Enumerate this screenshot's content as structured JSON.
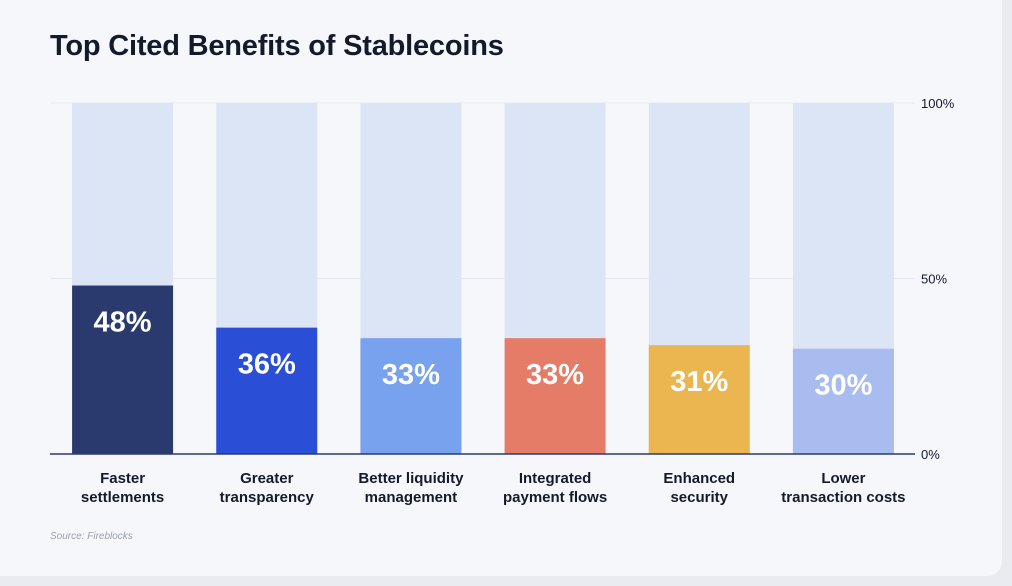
{
  "chart_data": {
    "type": "bar",
    "title": "Top Cited Benefits of Stablecoins",
    "categories": [
      [
        "Faster",
        "settlements"
      ],
      [
        "Greater",
        "transparency"
      ],
      [
        "Better liquidity",
        "management"
      ],
      [
        "Integrated",
        "payment flows"
      ],
      [
        "Enhanced",
        "security"
      ],
      [
        "Lower",
        "transaction costs"
      ]
    ],
    "values": [
      48,
      36,
      33,
      33,
      31,
      30
    ],
    "value_labels": [
      "48%",
      "36%",
      "33%",
      "33%",
      "31%",
      "30%"
    ],
    "colors": [
      "#2a3a6e",
      "#2a4fd6",
      "#78a2ee",
      "#e57c68",
      "#ebb64f",
      "#a9bcf0"
    ],
    "track_color": "#dbe5f5",
    "ylim": [
      0,
      100
    ],
    "yticks": [
      0,
      50,
      100
    ],
    "ytick_labels": [
      "0%",
      "50%",
      "100%"
    ],
    "y_axis_side": "right",
    "grid": true,
    "source": "Source: Fireblocks"
  }
}
